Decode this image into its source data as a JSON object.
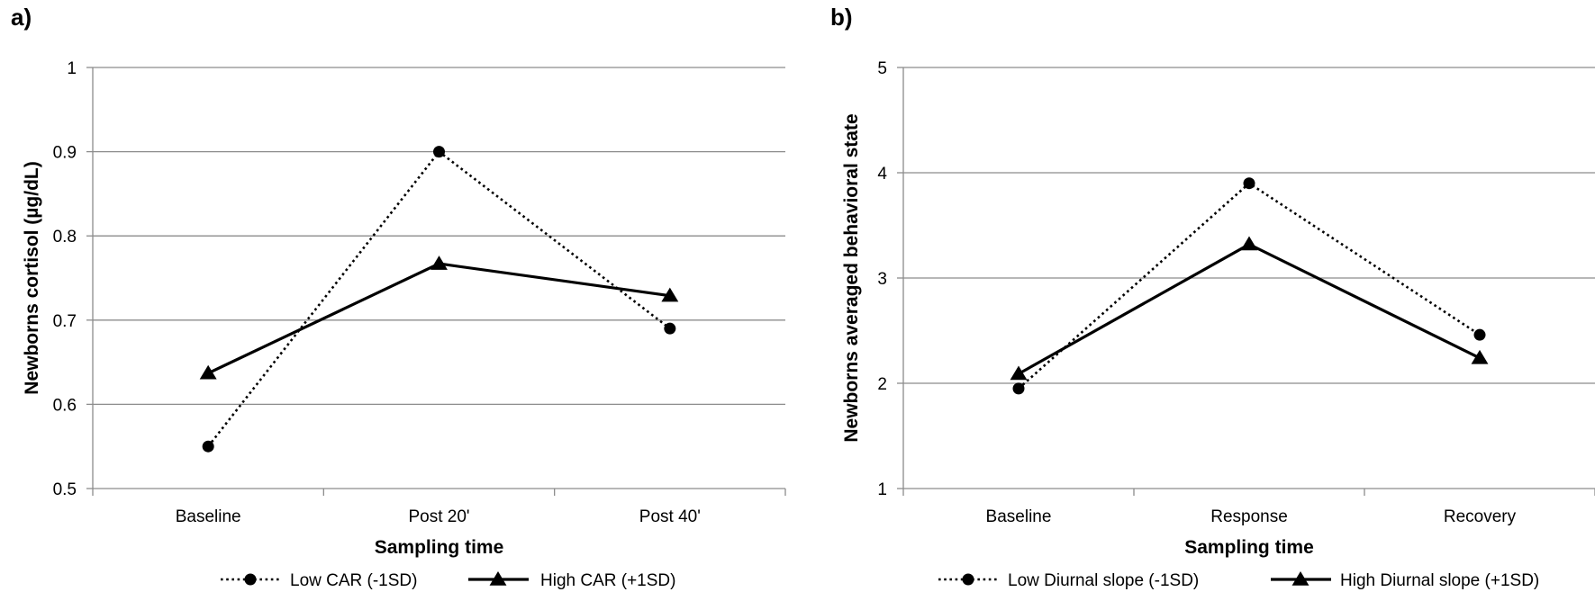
{
  "chart_data": [
    {
      "type": "line",
      "panel_label": "a)",
      "categories": [
        "Baseline",
        "Post 20'",
        "Post 40'"
      ],
      "xlabel": "Sampling time",
      "ylabel": "Newborns cortisol (µg/dL)",
      "ylim": [
        0.5,
        1
      ],
      "yticks": [
        "0.5",
        "0.6",
        "0.7",
        "0.8",
        "0.9",
        "1"
      ],
      "grid": true,
      "legend_position": "bottom",
      "series": [
        {
          "name": "Low CAR (-1SD)",
          "values": [
            0.55,
            0.9,
            0.69
          ],
          "line_style": "dotted",
          "marker": "circle",
          "color": "#000000"
        },
        {
          "name": "High CAR (+1SD)",
          "values": [
            0.637,
            0.767,
            0.729
          ],
          "line_style": "solid",
          "marker": "triangle",
          "color": "#000000"
        }
      ]
    },
    {
      "type": "line",
      "panel_label": "b)",
      "categories": [
        "Baseline",
        "Response",
        "Recovery"
      ],
      "xlabel": "Sampling time",
      "ylabel": "Newborns averaged behavioral state",
      "ylim": [
        1,
        5
      ],
      "yticks": [
        "1",
        "2",
        "3",
        "4",
        "5"
      ],
      "grid": true,
      "legend_position": "bottom",
      "series": [
        {
          "name": "Low Diurnal slope (-1SD)",
          "values": [
            1.95,
            3.9,
            2.46
          ],
          "line_style": "dotted",
          "marker": "circle",
          "color": "#000000"
        },
        {
          "name": "High Diurnal slope (+1SD)",
          "values": [
            2.09,
            3.32,
            2.24
          ],
          "line_style": "solid",
          "marker": "triangle",
          "color": "#000000"
        }
      ]
    }
  ]
}
